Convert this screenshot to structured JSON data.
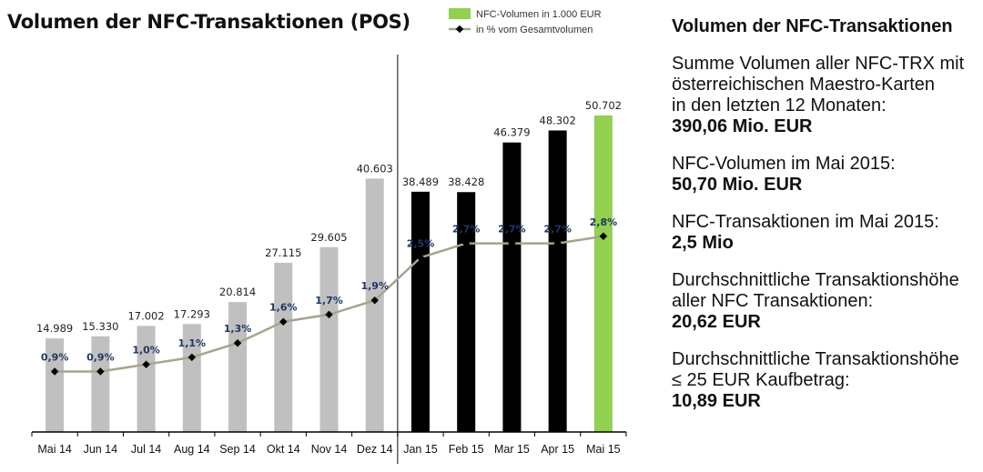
{
  "chart_data": {
    "type": "bar",
    "title": "Volumen der NFC-Transaktionen (POS)",
    "categories": [
      "Mai 14",
      "Jun 14",
      "Jul 14",
      "Aug 14",
      "Sep 14",
      "Okt 14",
      "Nov 14",
      "Dez 14",
      "Jan 15",
      "Feb 15",
      "Mar 15",
      "Apr 15",
      "Mai 15"
    ],
    "series": [
      {
        "name": "NFC-Volumen in 1.000 EUR",
        "type": "bar",
        "values": [
          14989,
          15330,
          17002,
          17293,
          20814,
          27115,
          29605,
          40603,
          38489,
          38428,
          46379,
          48302,
          50702
        ],
        "labels": [
          "14.989",
          "15.330",
          "17.002",
          "17.293",
          "20.814",
          "27.115",
          "29.605",
          "40.603",
          "38.489",
          "38.428",
          "46.379",
          "48.302",
          "50.702"
        ],
        "colors": [
          "#c0c0c0",
          "#c0c0c0",
          "#c0c0c0",
          "#c0c0c0",
          "#c0c0c0",
          "#c0c0c0",
          "#c0c0c0",
          "#c0c0c0",
          "#000000",
          "#000000",
          "#000000",
          "#000000",
          "#92d050"
        ]
      },
      {
        "name": "in % vom Gesamtvolumen",
        "type": "line",
        "values": [
          0.9,
          0.9,
          1.0,
          1.1,
          1.3,
          1.6,
          1.7,
          1.9,
          2.5,
          2.7,
          2.7,
          2.7,
          2.8
        ],
        "labels": [
          "0,9%",
          "0,9%",
          "1,0%",
          "1,1%",
          "1,3%",
          "1,6%",
          "1,7%",
          "1,9%",
          "2,5%",
          "2,7%",
          "2,7%",
          "2,7%",
          "2,8%"
        ],
        "color": "#a5a58d",
        "marker_color": "#000000",
        "label_color": "#1f3864"
      }
    ],
    "legend": "top-right",
    "grid": false,
    "divider_after_category": "Dez 14"
  },
  "side_panel": {
    "title": "Volumen der NFC-Transaktionen",
    "stats": [
      {
        "label": "Summe Volumen aller NFC-TRX mit\nösterreichischen Maestro-Karten\nin den letzten 12 Monaten:",
        "value": "390,06 Mio. EUR"
      },
      {
        "label": "NFC-Volumen  im Mai 2015:",
        "value": "50,70 Mio. EUR"
      },
      {
        "label": "NFC-Transaktionen im Mai 2015:",
        "value": "2,5 Mio"
      },
      {
        "label": "Durchschnittliche Transaktionshöhe\naller NFC Transaktionen:",
        "value": "20,62 EUR"
      },
      {
        "label": "Durchschnittliche Transaktionshöhe\n≤ 25 EUR Kaufbetrag:",
        "value": "10,89 EUR"
      }
    ]
  }
}
